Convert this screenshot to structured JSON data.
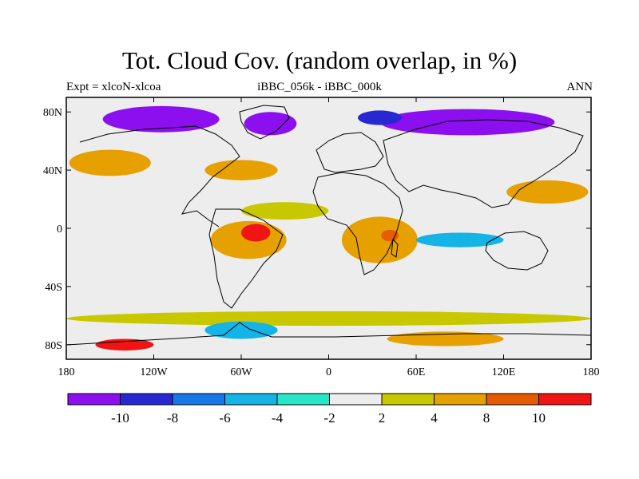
{
  "header": {
    "title": "Tot. Cloud Cov. (random overlap, in %)",
    "left": "Expt = xlcoN-xlcoa",
    "center": "iBBC_056k - iBBC_000k",
    "right": "ANN"
  },
  "axes": {
    "lat_labels": [
      "80N",
      "40N",
      "0",
      "40S",
      "80S"
    ],
    "lat_values": [
      80,
      40,
      0,
      -40,
      -80
    ],
    "lon_labels": [
      "180",
      "120W",
      "60W",
      "0",
      "60E",
      "120E",
      "180"
    ],
    "lon_values": [
      -180,
      -120,
      -60,
      0,
      60,
      120,
      180
    ],
    "lat_range": [
      -90,
      90
    ],
    "lon_range": [
      -180,
      180
    ]
  },
  "colorbar": {
    "colors": [
      "#8c0ff0",
      "#2828d2",
      "#1478e6",
      "#14b4e6",
      "#28e6c8",
      "#ededed",
      "#c8c800",
      "#e6a000",
      "#e65a00",
      "#f01414"
    ],
    "labels": [
      "-10",
      "-8",
      "-6",
      "-4",
      "-2",
      "2",
      "4",
      "8",
      "10"
    ]
  },
  "regions": [
    {
      "name": "arctic-north-america",
      "lon": -115,
      "lat": 75,
      "rx": 40,
      "ry": 9,
      "level": 0
    },
    {
      "name": "arctic-greenland",
      "lon": -40,
      "lat": 72,
      "rx": 18,
      "ry": 8,
      "level": 0
    },
    {
      "name": "arctic-siberia",
      "lon": 95,
      "lat": 73,
      "rx": 60,
      "ry": 9,
      "level": 0
    },
    {
      "name": "arctic-scandinavia",
      "lon": 35,
      "lat": 76,
      "rx": 15,
      "ry": 5,
      "level": 1
    },
    {
      "name": "north-pacific-orange",
      "lon": -150,
      "lat": 45,
      "rx": 28,
      "ry": 9,
      "level": 7
    },
    {
      "name": "north-atlantic-orange",
      "lon": -60,
      "lat": 40,
      "rx": 25,
      "ry": 7,
      "level": 7
    },
    {
      "name": "atlantic-yellow",
      "lon": -30,
      "lat": 12,
      "rx": 30,
      "ry": 6,
      "level": 6
    },
    {
      "name": "south-america-orange",
      "lon": -55,
      "lat": -8,
      "rx": 26,
      "ry": 13,
      "level": 7
    },
    {
      "name": "amazon-red",
      "lon": -50,
      "lat": -3,
      "rx": 10,
      "ry": 6,
      "level": 9
    },
    {
      "name": "africa-orange",
      "lon": 35,
      "lat": -8,
      "rx": 26,
      "ry": 16,
      "level": 7
    },
    {
      "name": "africa-red",
      "lon": 42,
      "lat": -5,
      "rx": 6,
      "ry": 4,
      "level": 8
    },
    {
      "name": "indian-ocean-cyan",
      "lon": 90,
      "lat": -8,
      "rx": 30,
      "ry": 5,
      "level": 3
    },
    {
      "name": "pacific-orange",
      "lon": 150,
      "lat": 25,
      "rx": 28,
      "ry": 8,
      "level": 7
    },
    {
      "name": "southern-ocean-yellow",
      "lon": 0,
      "lat": -62,
      "rx": 180,
      "ry": 5,
      "level": 6
    },
    {
      "name": "antarctic-cyan",
      "lon": -60,
      "lat": -70,
      "rx": 25,
      "ry": 6,
      "level": 3
    },
    {
      "name": "antarctic-orange-east",
      "lon": 80,
      "lat": -76,
      "rx": 40,
      "ry": 5,
      "level": 7
    },
    {
      "name": "antarctic-red-west",
      "lon": -140,
      "lat": -80,
      "rx": 20,
      "ry": 4,
      "level": 9
    }
  ]
}
